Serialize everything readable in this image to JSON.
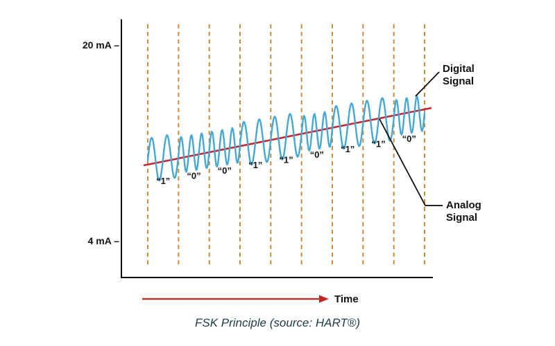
{
  "page": {
    "caption": "FSK Principle (source: HART®)"
  },
  "axis": {
    "y_top": "20 mA –",
    "y_bottom": "4 mA –",
    "x_label": "Time"
  },
  "annotations": {
    "digital_line1": "Digital",
    "digital_line2": "Signal",
    "analog_line1": "Analog",
    "analog_line2": "Signal"
  },
  "colors": {
    "grid_dashed": "#CE8B3F",
    "digital_wave": "#44A8D4",
    "analog_line": "#C9242B",
    "arrow": "#C0281F",
    "axis": "#000000"
  },
  "chart_data": {
    "type": "line",
    "title": "FSK Principle (source: HART®)",
    "description": "HART FSK modulation: digital bits encoded as frequency shifts of a sine wave superimposed on a rising 4-20 mA analog current signal",
    "bits": [
      "1",
      "0",
      "0",
      "1",
      "1",
      "0",
      "1",
      "1",
      "0"
    ],
    "bit_labels": [
      "“1”",
      "“0”",
      "“0”",
      "“1”",
      "“1”",
      "“0”",
      "“1”",
      "“1”",
      "“0”"
    ],
    "y_axis_labels": [
      "20 mA",
      "4 mA"
    ],
    "xlabel": "Time",
    "ylim": [
      "4 mA",
      "20 mA"
    ],
    "series": [
      {
        "name": "Digital Signal",
        "kind": "fsk-sine"
      },
      {
        "name": "Analog Signal",
        "kind": "linear-ramp"
      }
    ],
    "cycles_per_bit": {
      "1": 2,
      "0": 3
    }
  }
}
